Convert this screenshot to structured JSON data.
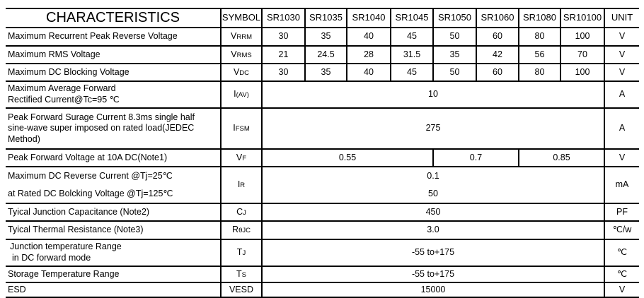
{
  "header": {
    "title": "CHARACTERISTICS",
    "symbol": "SYMBOL",
    "parts": [
      "SR1030",
      "SR1035",
      "SR1040",
      "SR1045",
      "SR1050",
      "SR1060",
      "SR1080",
      "SR10100"
    ],
    "unit": "UNIT"
  },
  "rows": [
    {
      "label": "Maximum Recurrent Peak Reverse Voltage",
      "sym": "V",
      "sub": "RRM",
      "values": [
        "30",
        "35",
        "40",
        "45",
        "50",
        "60",
        "80",
        "100"
      ],
      "unit": "V"
    },
    {
      "label": "Maximum RMS Voltage",
      "sym": "V",
      "sub": "RMS",
      "values": [
        "21",
        "24.5",
        "28",
        "31.5",
        "35",
        "42",
        "56",
        "70"
      ],
      "unit": "V"
    },
    {
      "label": "Maximum DC Blocking Voltage",
      "sym": "V",
      "sub": "DC",
      "values": [
        "30",
        "35",
        "40",
        "45",
        "50",
        "60",
        "80",
        "100"
      ],
      "unit": "V"
    },
    {
      "label1": "Maximum Average Forward",
      "label2": "Rectified Current@Tc=95 ℃",
      "sym": "I",
      "sub": "(AV)",
      "value": "10",
      "unit": "A"
    },
    {
      "label1": "Peak Forward Surage Current 8.3ms single half",
      "label2": "sine-wave super imposed on rated load(JEDEC",
      "label3": "Method)",
      "sym": "I",
      "sub": "FSM",
      "value": "275",
      "unit": "A"
    },
    {
      "label": "Peak Forward Voltage at 10A DC(Note1)",
      "sym": "V",
      "sub": "F",
      "values": [
        "0.55",
        "0.7",
        "0.85"
      ],
      "unit": "V"
    },
    {
      "label1": "Maximum DC Reverse Current  @Tj=25℃",
      "label2": "at Rated DC Bolcking Voltage  @Tj=125℃",
      "sym": "I",
      "sub": "R",
      "value1": "0.1",
      "value2": "50",
      "unit": "mA"
    },
    {
      "label": "Tyical Junction  Capacitance (Note2)",
      "sym": "C",
      "sub": "J",
      "value": "450",
      "unit": "PF"
    },
    {
      "label": "Tyical Thermal Resistance (Note3)",
      "sym": "R",
      "sub": "θJC",
      "value": "3.0",
      "unit": "℃/w"
    },
    {
      "label1": "Junction temperature Range",
      "label2": "in DC forward mode",
      "sym": "T",
      "sub": "J",
      "value": "-55 to+175",
      "unit": "℃"
    },
    {
      "label": "Storage Temperature Range",
      "sym": "T",
      "sub": "S",
      "value": "-55 to+175",
      "unit": "℃"
    },
    {
      "label": "ESD",
      "sym": "VESD",
      "value": "15000",
      "unit": "V"
    }
  ]
}
